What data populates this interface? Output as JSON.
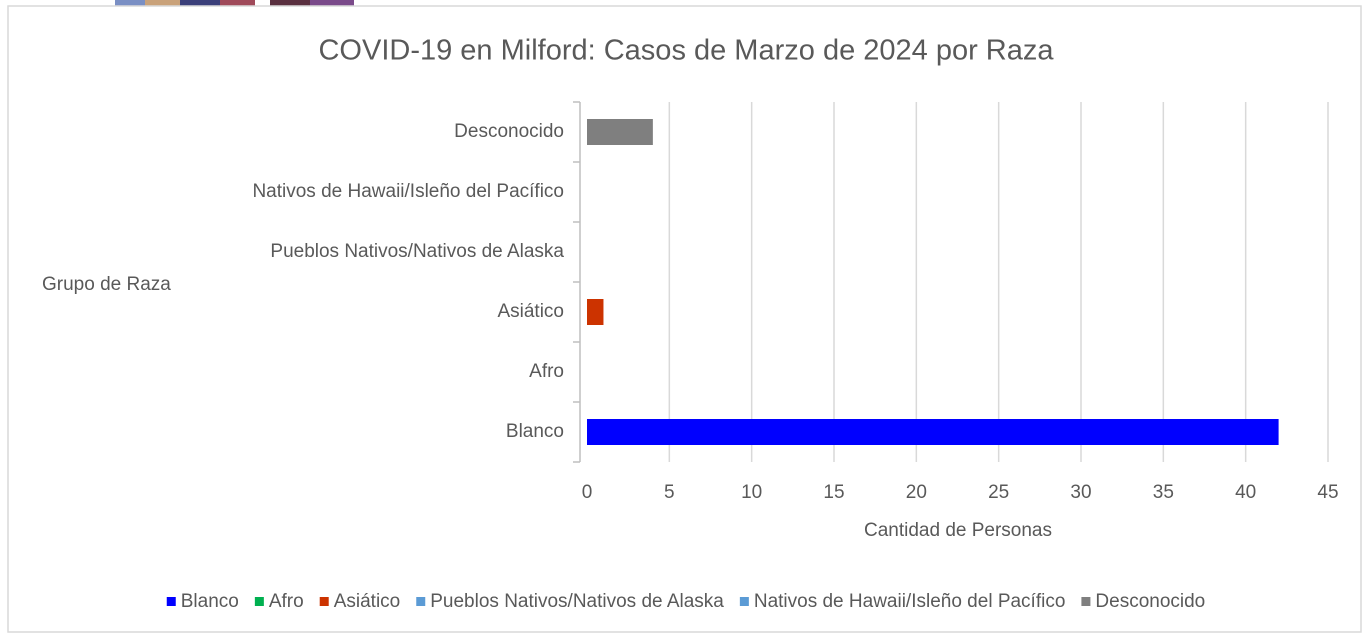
{
  "chart_data": {
    "type": "bar",
    "orientation": "horizontal",
    "title": "COVID-19 en Milford: Casos de Marzo de 2024 por Raza",
    "x_label": "Cantidad de Personas",
    "y_label": "Grupo de Raza",
    "categories": [
      "Blanco",
      "Afro",
      "Asiático",
      "Pueblos Nativos/Nativos de Alaska",
      "Nativos de Hawaii/Isleño del Pacífico",
      "Desconocido"
    ],
    "values": [
      42,
      0,
      1,
      0,
      0,
      4
    ],
    "colors": [
      "#0000ff",
      "#00b050",
      "#cc3300",
      "#5b9bd5",
      "#5b9bd5",
      "#7f7f7f"
    ],
    "xlim": [
      0,
      45
    ],
    "xticks": [
      0,
      5,
      10,
      15,
      20,
      25,
      30,
      35,
      40,
      45
    ],
    "grid": true,
    "legend": "bottom"
  }
}
